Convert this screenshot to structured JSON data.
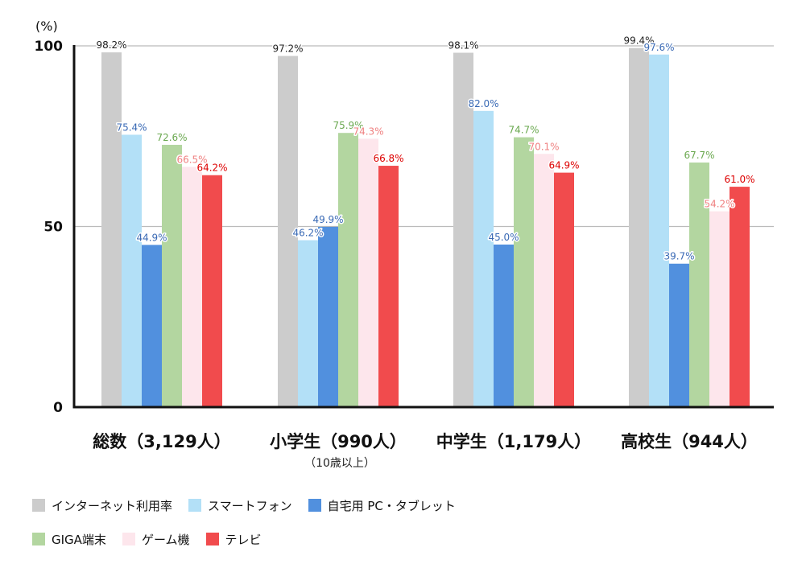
{
  "chart_data": {
    "type": "bar",
    "title": "",
    "xlabel": "",
    "ylabel": "(%)",
    "ylim": [
      0,
      100
    ],
    "yticks": [
      0,
      50,
      100
    ],
    "grid": true,
    "legend_position": "bottom",
    "categories": [
      {
        "label": "総数（3,129人）",
        "sublabel": ""
      },
      {
        "label": "小学生（990人）",
        "sublabel": "（10歳以上）"
      },
      {
        "label": "中学生（1,179人）",
        "sublabel": ""
      },
      {
        "label": "高校生（944人）",
        "sublabel": ""
      }
    ],
    "series": [
      {
        "name": "インターネット利用率",
        "color": "#cccccc",
        "label_color": "#222222",
        "values": [
          98.2,
          97.2,
          98.1,
          99.4
        ]
      },
      {
        "name": "スマートフォン",
        "color": "#b3e0f7",
        "label_color": "#3a6ab5",
        "values": [
          75.4,
          46.2,
          82.0,
          97.6
        ]
      },
      {
        "name": "自宅用 PC・タブレット",
        "color": "#5190de",
        "label_color": "#3a6ab5",
        "values": [
          44.9,
          49.9,
          45.0,
          39.7
        ]
      },
      {
        "name": "GIGA端末",
        "color": "#b3d6a0",
        "label_color": "#6aa84f",
        "values": [
          72.6,
          75.9,
          74.7,
          67.7
        ]
      },
      {
        "name": "ゲーム機",
        "color": "#fde6ec",
        "label_color": "#ef8080",
        "values": [
          66.5,
          74.3,
          70.1,
          54.2
        ]
      },
      {
        "name": "テレビ",
        "color": "#f14b4d",
        "label_color": "#dd0000",
        "values": [
          64.2,
          66.8,
          64.9,
          61.0
        ]
      }
    ],
    "value_labels": [
      [
        "98.2%",
        "75.4%",
        "44.9%",
        "72.6%",
        "66.5%",
        "64.2%"
      ],
      [
        "97.2%",
        "46.2%",
        "49.9%",
        "75.9%",
        "74.3%",
        "66.8%"
      ],
      [
        "98.1%",
        "82.0%",
        "45.0%",
        "74.7%",
        "70.1%",
        "64.9%"
      ],
      [
        "99.4%",
        "97.6%",
        "39.7%",
        "67.7%",
        "54.2%",
        "61.0%"
      ]
    ]
  }
}
